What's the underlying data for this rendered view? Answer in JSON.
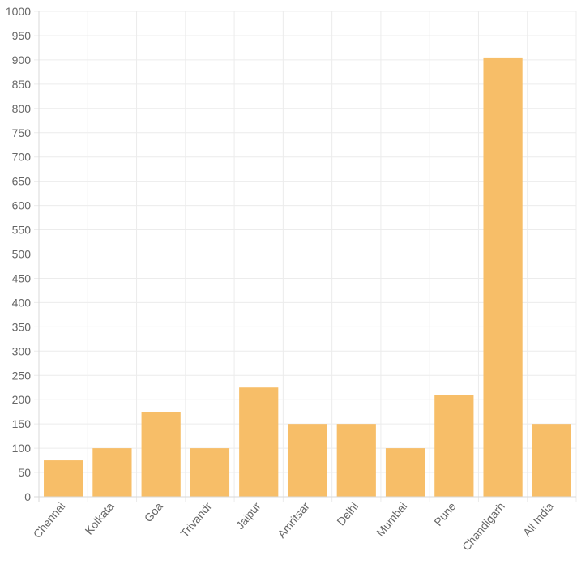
{
  "chart_data": {
    "type": "bar",
    "categories": [
      "Chennai",
      "Kolkata",
      "Goa",
      "Trivandr",
      "Jaipur",
      "Amritsar",
      "Delhi",
      "Mumbai",
      "Pune",
      "Chandigarh",
      "All India"
    ],
    "values": [
      75,
      100,
      175,
      100,
      225,
      150,
      150,
      100,
      210,
      905,
      150
    ],
    "ylim": [
      0,
      1000
    ],
    "y_ticks": [
      "0",
      "50",
      "100",
      "150",
      "200",
      "250",
      "300",
      "350",
      "400",
      "450",
      "500",
      "550",
      "600",
      "650",
      "700",
      "750",
      "800",
      "850",
      "900",
      "950",
      "1000"
    ],
    "bar_color": "#f7be68",
    "grid": true,
    "grid_color": "#ececec",
    "axis_color": "#d9d9d9"
  }
}
